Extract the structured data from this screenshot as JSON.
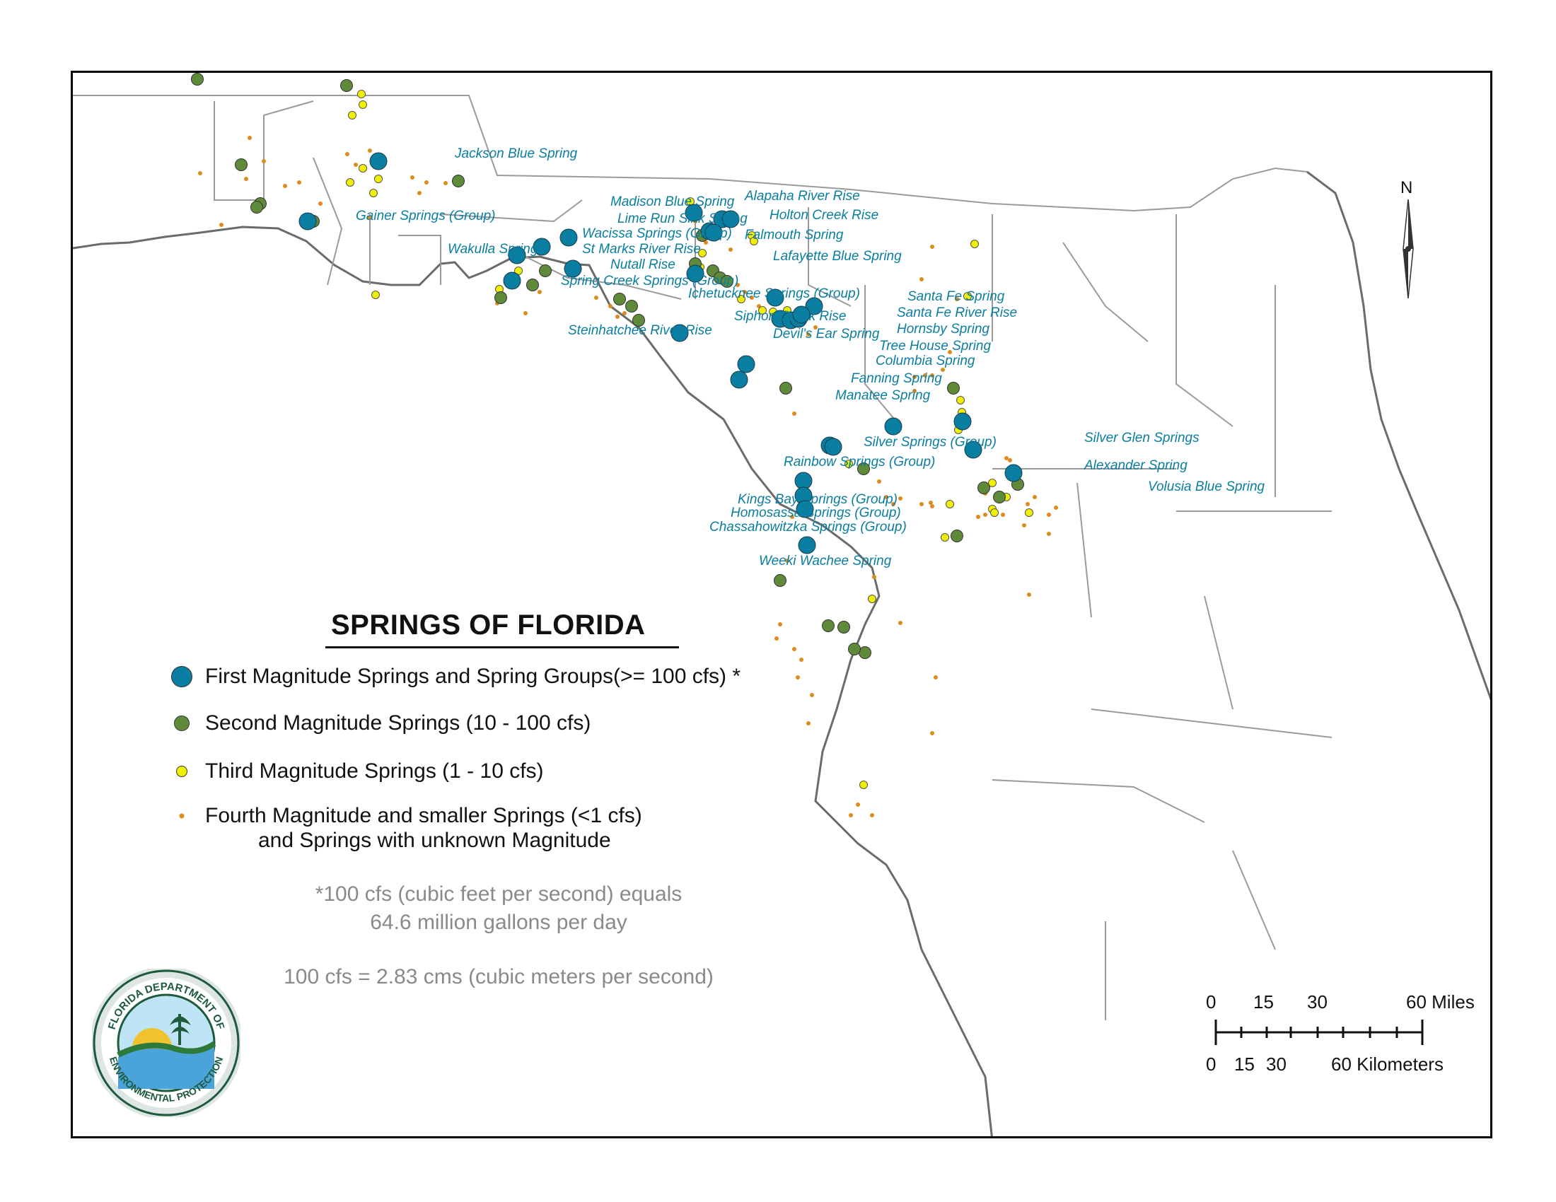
{
  "legend": {
    "title": "SPRINGS OF FLORIDA",
    "items": [
      {
        "label": "First Magnitude Springs and Spring Groups(>= 100 cfs) *",
        "color": "#0a7ea0"
      },
      {
        "label": "Second Magnitude Springs (10 - 100 cfs)",
        "color": "#5e8a3a"
      },
      {
        "label": "Third Magnitude Springs (1 - 10 cfs)",
        "color": "#f0f000"
      },
      {
        "label": "Fourth Magnitude and smaller Springs (<1 cfs)",
        "color": "#e08a1e"
      }
    ],
    "item4_line2": "and Springs with unknown Magnitude"
  },
  "notes": {
    "line1": "*100 cfs (cubic feet per second) equals",
    "line2": "64.6 million gallons per day",
    "line3": "100 cfs = 2.83 cms (cubic meters per second)"
  },
  "north_arrow": {
    "label": "N"
  },
  "scale_bar": {
    "miles_ticks": [
      "0",
      "15",
      "30",
      "60 Miles"
    ],
    "km_ticks": [
      "0",
      "15",
      "30",
      "60 Kilometers"
    ]
  },
  "logo": {
    "text_top": "FLORIDA DEPARTMENT OF",
    "text_bottom": "ENVIRONMENTAL PROTECTION"
  },
  "colors": {
    "first": "#0a7ea0",
    "second": "#5e8a3a",
    "third": "#f0f000",
    "fourth": "#e08a1e",
    "coast": "#6b6b6b",
    "county": "#9a9a9a"
  },
  "spring_labels": [
    "Jackson Blue Spring",
    "Gainer Springs (Group)",
    "Madison Blue Spring",
    "Alapaha River Rise",
    "Holton Creek Rise",
    "Lime Run Sink Spring",
    "Wacissa Springs (Group)",
    "Falmouth Spring",
    "Wakulla Springs",
    "St Marks River Rise",
    "Nutall Rise",
    "Lafayette Blue Spring",
    "Spring Creek Springs (Group)",
    "Ichetucknee Springs (Group)",
    "Santa Fe Spring",
    "Santa Fe River Rise",
    "Siphon Creek Rise",
    "Hornsby Spring",
    "Steinhatchee River Rise",
    "Devil's Ear Spring",
    "Tree House Spring",
    "Columbia Spring",
    "Fanning Spring",
    "Manatee Spring",
    "Silver Springs (Group)",
    "Silver Glen Springs",
    "Rainbow Springs (Group)",
    "Alexander Spring",
    "Volusia Blue Spring",
    "Kings Bay Springs (Group)",
    "Homosassa Springs (Group)",
    "Chassahowitzka Springs (Group)",
    "Weeki Wachee Spring"
  ]
}
